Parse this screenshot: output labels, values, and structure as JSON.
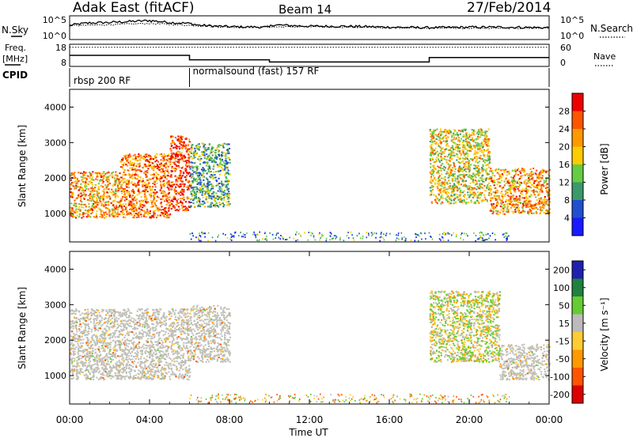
{
  "header": {
    "station": "Adak East (fitACF)",
    "beam": "Beam 14",
    "date": "27/Feb/2014"
  },
  "side_labels": {
    "nsky": "N.Sky",
    "freq_line1": "Freq.",
    "freq_line2": "[MHz]",
    "cpid": "CPID",
    "nsearch": "N.Search",
    "nave": "Nave"
  },
  "noise_panel": {
    "left_ticks": [
      "10^5",
      "10^0"
    ],
    "right_ticks": [
      "10^5",
      "10^0"
    ]
  },
  "freq_panel": {
    "left_ticks": [
      "18",
      "8"
    ],
    "right_ticks": [
      "60",
      "0"
    ]
  },
  "cpid_panel": {
    "segments": [
      {
        "label": "rbsp 200 RF",
        "start_hour": 0,
        "end_hour": 6
      },
      {
        "label": "normalsound (fast) 157 RF",
        "start_hour": 6,
        "end_hour": 24
      }
    ]
  },
  "colors": {
    "power": [
      "#1a1aff",
      "#2050d0",
      "#3a9a6a",
      "#66cc44",
      "#ffcc00",
      "#ff9900",
      "#ff5500",
      "#ee0000"
    ],
    "velocity": [
      "#2020b0",
      "#208040",
      "#66cc33",
      "#bbbbbb",
      "#ffcc33",
      "#ff9900",
      "#ff5500",
      "#dd0000"
    ],
    "ground_scatter": "#c0c0b8"
  },
  "chart_data": [
    {
      "type": "line",
      "title": "N.Sky / N.Search",
      "series": [
        {
          "name": "N.Sky",
          "x": [
            0,
            0.5,
            1,
            2,
            3,
            4,
            5,
            6,
            6.5,
            8,
            10,
            10.1,
            12,
            14,
            16,
            18,
            20,
            22,
            24
          ],
          "y": [
            3.0,
            3.3,
            3.5,
            3.6,
            3.8,
            4.0,
            3.6,
            3.4,
            3.0,
            2.7,
            2.6,
            3.1,
            2.8,
            2.8,
            2.6,
            2.5,
            2.6,
            2.6,
            2.5
          ]
        },
        {
          "name": "N.Search",
          "x": [
            0,
            4,
            8,
            12,
            16,
            20,
            24
          ],
          "y": [
            2.9,
            3.4,
            2.6,
            2.7,
            2.5,
            2.4,
            2.4
          ]
        }
      ]
    },
    {
      "type": "line",
      "title": "Freq. / Nave",
      "series": [
        {
          "name": "Freq. [MHz]",
          "x": [
            0,
            6,
            6,
            10,
            10,
            18,
            18,
            24
          ],
          "y": [
            13,
            13,
            11,
            11,
            10,
            10,
            12,
            12
          ]
        },
        {
          "name": "Nave",
          "x": [
            0,
            24
          ],
          "y": [
            12,
            12
          ]
        }
      ],
      "ylim_left": [
        8,
        18
      ],
      "ylim_right": [
        0,
        60
      ]
    },
    {
      "type": "heatmap",
      "title": "Power",
      "xlabel": "",
      "ylabel": "Slant Range [km]",
      "xlim": [
        0,
        24
      ],
      "ylim": [
        200,
        4500
      ],
      "yticks": [
        1000,
        2000,
        3000,
        4000
      ],
      "colorbar": {
        "label": "Power [dB]",
        "ticks": [
          4,
          8,
          12,
          16,
          20,
          24,
          28
        ],
        "range": [
          0,
          32
        ]
      },
      "regions": [
        {
          "hours": [
            0,
            2.5
          ],
          "range_km": [
            900,
            2200
          ],
          "power_db": 22
        },
        {
          "hours": [
            2.5,
            5
          ],
          "range_km": [
            900,
            2700
          ],
          "power_db": 24
        },
        {
          "hours": [
            5,
            6
          ],
          "range_km": [
            1100,
            3200
          ],
          "power_db": 28
        },
        {
          "hours": [
            6,
            8
          ],
          "range_km": [
            1200,
            3000
          ],
          "power_db": 12
        },
        {
          "hours": [
            18,
            21
          ],
          "range_km": [
            1300,
            3400
          ],
          "power_db": 18
        },
        {
          "hours": [
            21,
            24
          ],
          "range_km": [
            1000,
            2300
          ],
          "power_db": 22
        }
      ]
    },
    {
      "type": "heatmap",
      "title": "Velocity",
      "xlabel": "Time UT",
      "ylabel": "Slant Range [km]",
      "xlim": [
        0,
        24
      ],
      "ylim": [
        200,
        4500
      ],
      "yticks": [
        1000,
        2000,
        3000,
        4000
      ],
      "xticks": [
        "00:00",
        "04:00",
        "08:00",
        "12:00",
        "16:00",
        "20:00",
        "00:00"
      ],
      "colorbar": {
        "label": "Velocity [m s⁻¹]",
        "ticks": [
          200,
          100,
          50,
          15,
          -15,
          -50,
          -100,
          -200
        ]
      },
      "regions": [
        {
          "hours": [
            0,
            6
          ],
          "range_km": [
            900,
            2900
          ],
          "velocity": 0,
          "ground_scatter": true
        },
        {
          "hours": [
            6,
            8
          ],
          "range_km": [
            1400,
            3000
          ],
          "velocity": 0,
          "ground_scatter": true
        },
        {
          "hours": [
            18,
            21.5
          ],
          "range_km": [
            1400,
            3400
          ],
          "velocity": 30,
          "ground_scatter": false
        },
        {
          "hours": [
            21.5,
            24
          ],
          "range_km": [
            900,
            1900
          ],
          "velocity": 0,
          "ground_scatter": true
        }
      ]
    }
  ]
}
